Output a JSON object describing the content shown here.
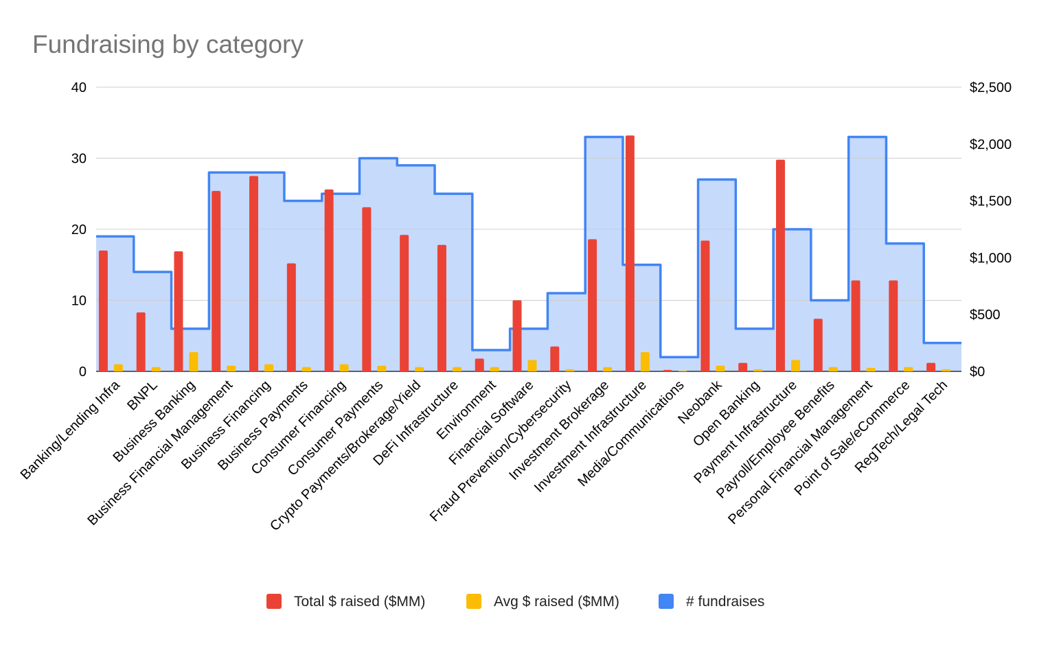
{
  "chart_data": {
    "type": "bar",
    "title": "Fundraising by category",
    "xlabel": "",
    "ylabel": "",
    "ylim": [
      0,
      40
    ],
    "y_ticks": [
      "0",
      "10",
      "20",
      "30",
      "40"
    ],
    "y2lim": [
      0,
      2500
    ],
    "y2_ticks": [
      "$0",
      "$500",
      "$1,000",
      "$1,500",
      "$2,000",
      "$2,500"
    ],
    "legend_position": "bottom",
    "grid": true,
    "categories": [
      "Banking/Lending Infra",
      "BNPL",
      "Business Banking",
      "Business Financial Management",
      "Business Financing",
      "Business Payments",
      "Consumer Financing",
      "Consumer Payments",
      "Crypto Payments/Brokerage/Yield",
      "DeFi Infrastructure",
      "Environment",
      "Financial Software",
      "Fraud Prevention/Cybersecurity",
      "Investment Brokerage",
      "Investment Infrastructure",
      "Media/Communications",
      "Neobank",
      "Open Banking",
      "Payment Infrastructure",
      "Payroll/Employee Benefits",
      "Personal Financial Management",
      "Point of Sale/eCommerce",
      "RegTech/Legal Tech"
    ],
    "series": [
      {
        "name": "Total $ raised ($MM)",
        "type": "bar",
        "axis": "left",
        "color": "#ea4335",
        "values": [
          17,
          8.3,
          16.9,
          25.4,
          27.5,
          15.2,
          25.6,
          23.1,
          19.2,
          17.8,
          1.8,
          10,
          3.5,
          18.6,
          33.2,
          0.2,
          18.4,
          1.2,
          29.8,
          7.4,
          12.8,
          12.8,
          1.2
        ]
      },
      {
        "name": "Avg $ raised ($MM)",
        "type": "bar",
        "axis": "left",
        "color": "#fbbc04",
        "values": [
          1.0,
          0.6,
          2.7,
          0.8,
          1.0,
          0.6,
          1.0,
          0.8,
          0.6,
          0.6,
          0.6,
          1.6,
          0.3,
          0.6,
          2.7,
          0.1,
          0.8,
          0.3,
          1.6,
          0.6,
          0.5,
          0.6,
          0.3
        ]
      },
      {
        "name": "# fundraises",
        "type": "stepped-area",
        "axis": "left",
        "color": "#4285f4",
        "fill": "#c6dafc",
        "values": [
          19,
          14,
          6,
          28,
          28,
          24,
          25,
          30,
          29,
          25,
          3,
          6,
          11,
          33,
          15,
          2,
          27,
          6,
          20,
          10,
          33,
          18,
          4
        ]
      }
    ]
  }
}
